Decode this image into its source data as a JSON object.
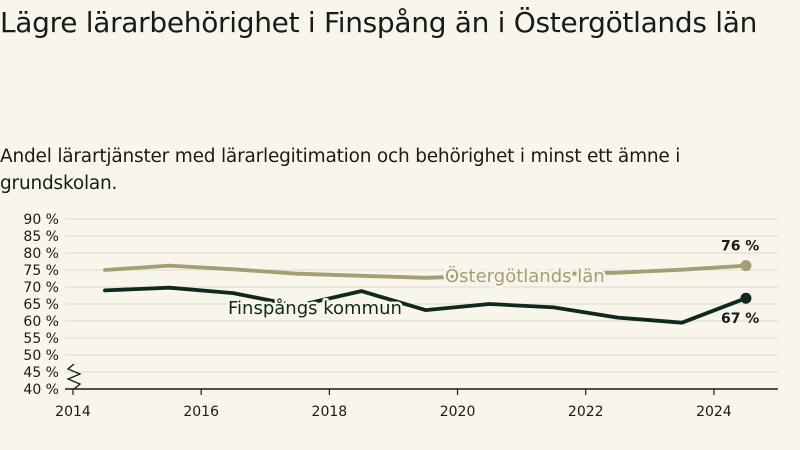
{
  "title": "Lägre lärarbehörighet i Finspång än i Östergötlands län",
  "subtitle": "Andel lärartjänster med lärarlegitimation och behörighet i minst ett ämne i grundskolan.",
  "colors": {
    "background": "#f8f5eb",
    "ostergotland": "#a49d76",
    "finspang": "#10291f",
    "grid": "#dcd9cf",
    "axis": "#1a1a1a"
  },
  "chart_data": {
    "type": "line",
    "x_ticks": [
      "2014",
      "2016",
      "2018",
      "2020",
      "2022",
      "2024"
    ],
    "x_tick_values": [
      2014,
      2016,
      2018,
      2020,
      2022,
      2024
    ],
    "y_ticks": [
      "90 %",
      "85 %",
      "80 %",
      "75 %",
      "70 %",
      "65 %",
      "60 %",
      "55 %",
      "50 %",
      "45 %",
      "40 %"
    ],
    "y_tick_values": [
      90,
      85,
      80,
      75,
      70,
      65,
      60,
      55,
      50,
      45,
      40
    ],
    "xlim": [
      2014,
      2025
    ],
    "ylim": [
      40,
      90
    ],
    "axis_break": true,
    "grid": true,
    "series": [
      {
        "name": "Östergötlands län",
        "color": "#a49d76",
        "x": [
          2014.5,
          2015.5,
          2016.5,
          2017.5,
          2018.5,
          2019.5,
          2020.5,
          2021.5,
          2022.5,
          2023.5,
          2024.5
        ],
        "values": [
          75,
          76.3,
          75.2,
          73.9,
          73.3,
          72.7,
          73.3,
          73.8,
          74.2,
          75.1,
          76.3
        ],
        "end_label": "76 %"
      },
      {
        "name": "Finspångs kommun",
        "color": "#10291f",
        "x": [
          2014.5,
          2015.5,
          2016.5,
          2017.5,
          2018.5,
          2019.5,
          2020.5,
          2021.5,
          2022.5,
          2023.5,
          2024.5
        ],
        "values": [
          69,
          69.8,
          68.2,
          64.5,
          68.8,
          63.2,
          65,
          64,
          61,
          59.5,
          66.7
        ],
        "end_label": "67 %"
      }
    ]
  }
}
